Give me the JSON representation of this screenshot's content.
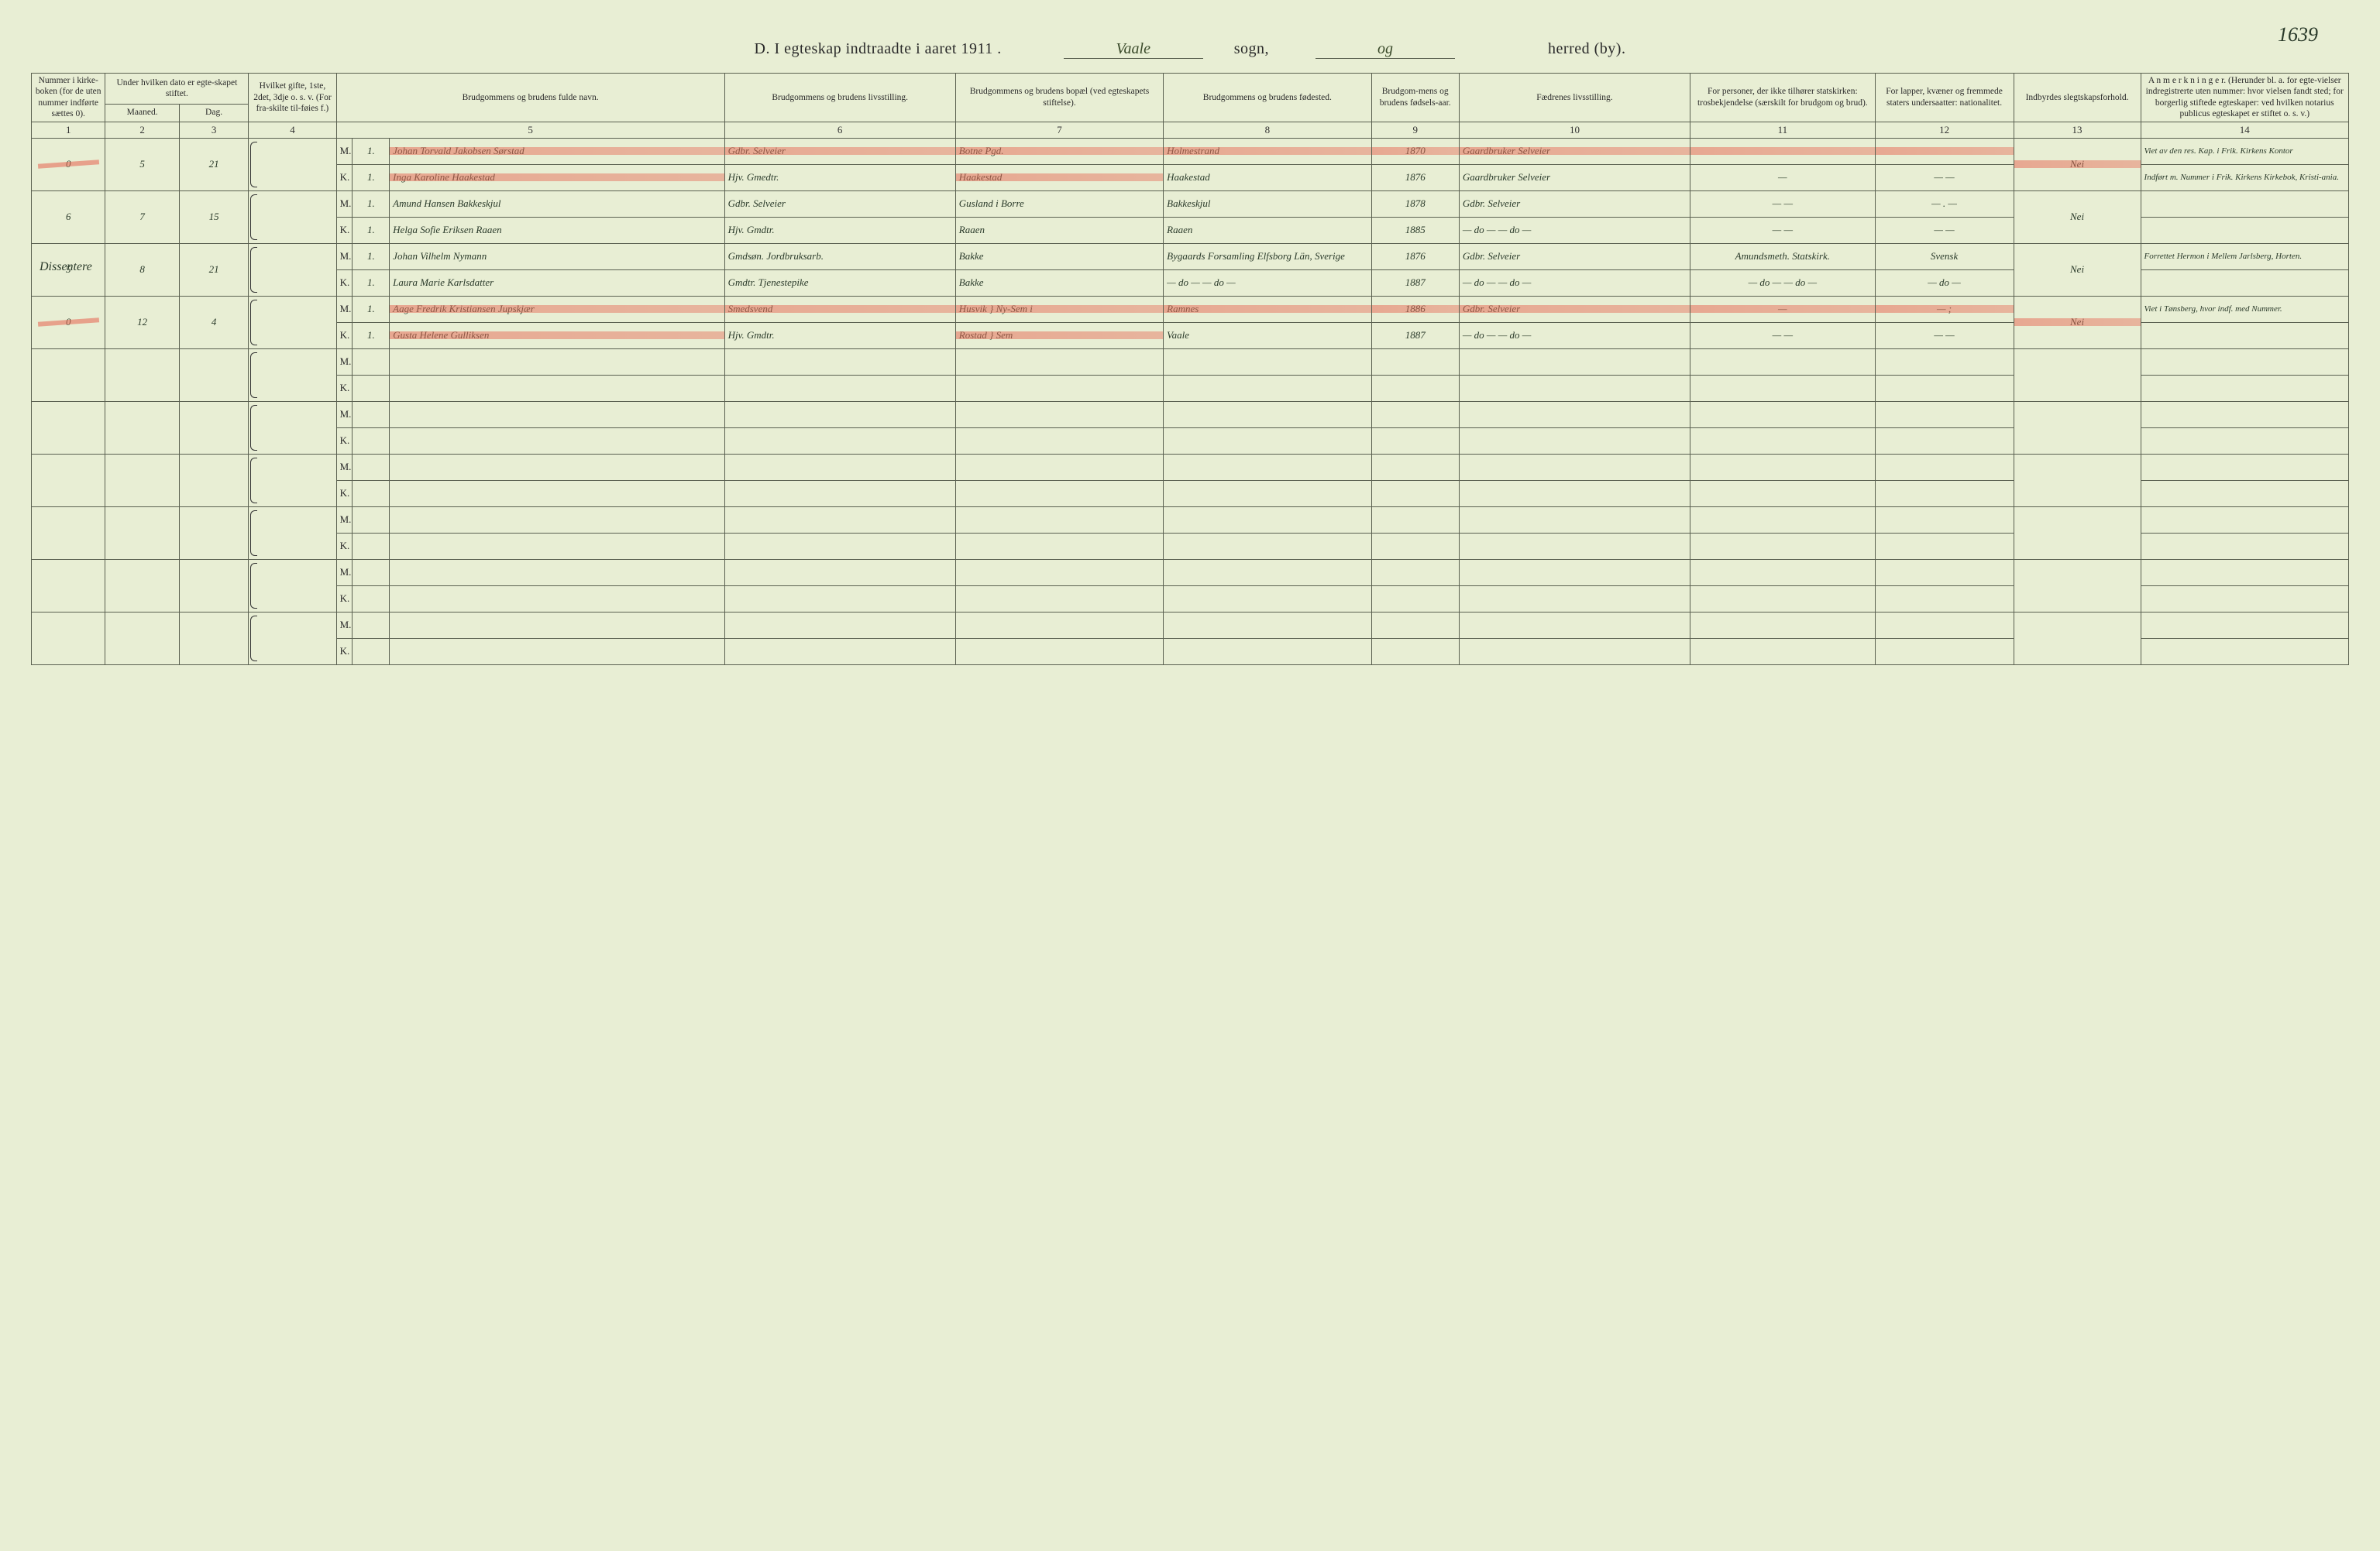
{
  "page_number_ms": "1639",
  "title": {
    "prefix": "D.  I egteskap indtraadte i aaret 1911 .",
    "sogn_value": "Vaale",
    "sogn_label": "sogn,",
    "herred_value": "og",
    "herred_label": "herred (by)."
  },
  "headers": {
    "c1": "Nummer i kirke-boken (for de uten nummer indførte sættes 0).",
    "c2_group": "Under hvilken dato er egte-skapet stiftet.",
    "c2a": "Maaned.",
    "c2b": "Dag.",
    "c4": "Hvilket gifte, 1ste, 2det, 3dje o. s. v. (For fra-skilte til-føies f.)",
    "c5": "Brudgommens og brudens fulde navn.",
    "c6": "Brudgommens og brudens livsstilling.",
    "c7": "Brudgommens og brudens bopæl (ved egteskapets stiftelse).",
    "c8": "Brudgommens og brudens fødested.",
    "c9": "Brudgom-mens og brudens fødsels-aar.",
    "c10": "Fædrenes livsstilling.",
    "c11": "For personer, der ikke tilhører statskirken: trosbekjendelse (særskilt for brudgom og brud).",
    "c12": "For lapper, kvæner og fremmede staters undersaatter: nationalitet.",
    "c13": "Indbyrdes slegtskapsforhold.",
    "c14": "A n m e r k n i n g e r.  (Herunder bl. a. for egte-vielser indregistrerte uten nummer: hvor vielsen fandt sted; for borgerlig stiftede egteskaper: ved hvilken notarius publicus egteskapet er stiftet o. s. v.)"
  },
  "colnums": [
    "1",
    "2",
    "3",
    "4",
    "",
    "",
    "5",
    "6",
    "7",
    "8",
    "9",
    "10",
    "11",
    "12",
    "13",
    "14"
  ],
  "margin_note": "Dissentere",
  "rows": [
    {
      "num": "0",
      "maaned": "5",
      "dag": "21",
      "highlight": true,
      "m": {
        "gifte": "1.",
        "navn": "Johan Torvald Jakobsen Sørstad",
        "stilling": "Gdbr. Selveier",
        "bopel": "Botne Pgd.",
        "fodested": "Holmestrand",
        "aar": "1870",
        "far": "Gaardbruker Selveier",
        "tros": "",
        "nat": "",
        "slegt": "Nei",
        "anm": "Viet av den res. Kap. i Frik. Kirkens Kontor"
      },
      "k": {
        "gifte": "1.",
        "navn": "Inga Karoline Haakestad",
        "stilling": "Hjv. Gmedtr.",
        "bopel": "Haakestad",
        "fodested": "Haakestad",
        "aar": "1876",
        "far": "Gaardbruker Selveier",
        "tros": "—",
        "nat": "— —",
        "slegt": "",
        "anm": "Indført m. Nummer i Frik. Kirkens Kirkebok, Kristi-ania."
      }
    },
    {
      "num": "6",
      "maaned": "7",
      "dag": "15",
      "highlight": false,
      "m": {
        "gifte": "1.",
        "navn": "Amund Hansen Bakkeskjul",
        "stilling": "Gdbr. Selveier",
        "bopel": "Gusland i Borre",
        "fodested": "Bakkeskjul",
        "aar": "1878",
        "far": "Gdbr. Selveier",
        "tros": "— —",
        "nat": "— . —",
        "slegt": "Nei",
        "anm": ""
      },
      "k": {
        "gifte": "1.",
        "navn": "Helga Sofie Eriksen Raaen",
        "stilling": "Hjv. Gmdtr.",
        "bopel": "Raaen",
        "fodested": "Raaen",
        "aar": "1885",
        "far": "— do — — do —",
        "tros": "— —",
        "nat": "— —",
        "slegt": "",
        "anm": ""
      }
    },
    {
      "num": "5",
      "maaned": "8",
      "dag": "21",
      "highlight": false,
      "margin": "Dissentere",
      "m": {
        "gifte": "1.",
        "navn": "Johan Vilhelm Nymann",
        "stilling": "Gmdsøn. Jordbruksarb.",
        "bopel": "Bakke",
        "fodested": "Bygaards Forsamling Elfsborg Län, Sverige",
        "aar": "1876",
        "far": "Gdbr. Selveier",
        "tros": "Amundsmeth. Statskirk.",
        "nat": "Svensk",
        "slegt": "Nei",
        "anm": "Forrettet Hermon i Mellem Jarlsberg, Horten."
      },
      "k": {
        "gifte": "1.",
        "navn": "Laura Marie Karlsdatter",
        "stilling": "Gmdtr. Tjenestepike",
        "bopel": "Bakke",
        "fodested": "— do — — do —",
        "aar": "1887",
        "far": "— do — — do —",
        "tros": "— do — — do —",
        "nat": "— do —",
        "slegt": "",
        "anm": ""
      }
    },
    {
      "num": "0",
      "maaned": "12",
      "dag": "4",
      "highlight": true,
      "m": {
        "gifte": "1.",
        "navn": "Aage Fredrik Kristiansen Jupskjær",
        "stilling": "Smedsvend",
        "bopel": "Husvik } Ny-Sem i",
        "fodested": "Ramnes",
        "aar": "1886",
        "far": "Gdbr. Selveier",
        "tros": "—",
        "nat": "— ;",
        "slegt": "Nei",
        "anm": "Viet i Tønsberg, hvor indf. med Nummer."
      },
      "k": {
        "gifte": "1.",
        "navn": "Gusta Helene Gulliksen",
        "stilling": "Hjv. Gmdtr.",
        "bopel": "Rostad } Sem",
        "fodested": "Vaale",
        "aar": "1887",
        "far": "— do — — do —",
        "tros": "— —",
        "nat": "— —",
        "slegt": "",
        "anm": ""
      }
    },
    {
      "empty": true
    },
    {
      "empty": true
    },
    {
      "empty": true
    },
    {
      "empty": true
    },
    {
      "empty": true
    },
    {
      "empty": true
    }
  ]
}
